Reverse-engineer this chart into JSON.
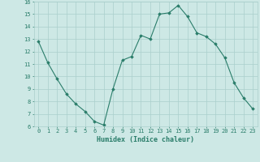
{
  "x": [
    0,
    1,
    2,
    3,
    4,
    5,
    6,
    7,
    8,
    9,
    10,
    11,
    12,
    13,
    14,
    15,
    16,
    17,
    18,
    19,
    20,
    21,
    22,
    23
  ],
  "y": [
    12.8,
    11.1,
    9.8,
    8.6,
    7.8,
    7.2,
    6.4,
    6.1,
    9.0,
    11.3,
    11.6,
    13.3,
    13.0,
    15.0,
    15.1,
    15.7,
    14.8,
    13.5,
    13.2,
    12.6,
    11.5,
    9.5,
    8.3,
    7.4
  ],
  "xlabel": "Humidex (Indice chaleur)",
  "ylim": [
    6,
    16
  ],
  "xlim_min": -0.5,
  "xlim_max": 23.5,
  "yticks": [
    6,
    7,
    8,
    9,
    10,
    11,
    12,
    13,
    14,
    15,
    16
  ],
  "xticks": [
    0,
    1,
    2,
    3,
    4,
    5,
    6,
    7,
    8,
    9,
    10,
    11,
    12,
    13,
    14,
    15,
    16,
    17,
    18,
    19,
    20,
    21,
    22,
    23
  ],
  "line_color": "#2a7d6a",
  "marker": "D",
  "marker_size": 1.8,
  "bg_color": "#cde8e5",
  "grid_color": "#aacfcc",
  "xlabel_fontsize": 6.0,
  "tick_fontsize": 5.0
}
